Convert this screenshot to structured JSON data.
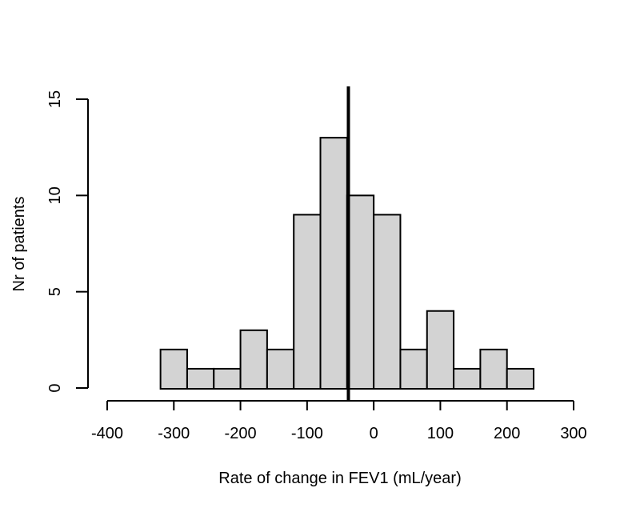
{
  "chart_data": {
    "type": "bar",
    "subtype": "histogram",
    "title": "",
    "xlabel": "Rate of change in FEV1 (mL/year)",
    "ylabel": "Nr of patients",
    "xlim": [
      -400,
      300
    ],
    "ylim": [
      0,
      15
    ],
    "x_ticks": [
      -400,
      -300,
      -200,
      -100,
      0,
      100,
      200,
      300
    ],
    "y_ticks": [
      0,
      5,
      10,
      15
    ],
    "bin_start": -320,
    "bin_width": 40,
    "bins": [
      {
        "x0": -320,
        "x1": -280,
        "count": 2
      },
      {
        "x0": -280,
        "x1": -240,
        "count": 1
      },
      {
        "x0": -240,
        "x1": -200,
        "count": 1
      },
      {
        "x0": -200,
        "x1": -160,
        "count": 3
      },
      {
        "x0": -160,
        "x1": -120,
        "count": 2
      },
      {
        "x0": -120,
        "x1": -80,
        "count": 9
      },
      {
        "x0": -80,
        "x1": -40,
        "count": 13
      },
      {
        "x0": -40,
        "x1": 0,
        "count": 10
      },
      {
        "x0": 0,
        "x1": 40,
        "count": 9
      },
      {
        "x0": 40,
        "x1": 80,
        "count": 2
      },
      {
        "x0": 80,
        "x1": 120,
        "count": 4
      },
      {
        "x0": 120,
        "x1": 160,
        "count": 1
      },
      {
        "x0": 160,
        "x1": 200,
        "count": 2
      },
      {
        "x0": 200,
        "x1": 240,
        "count": 1
      }
    ],
    "vline_x": -38,
    "grid": false,
    "legend": "none",
    "colors": {
      "bar_fill": "#d3d3d3",
      "bar_border": "#000000",
      "axis": "#000000",
      "vline": "#000000",
      "background": "#ffffff"
    }
  }
}
